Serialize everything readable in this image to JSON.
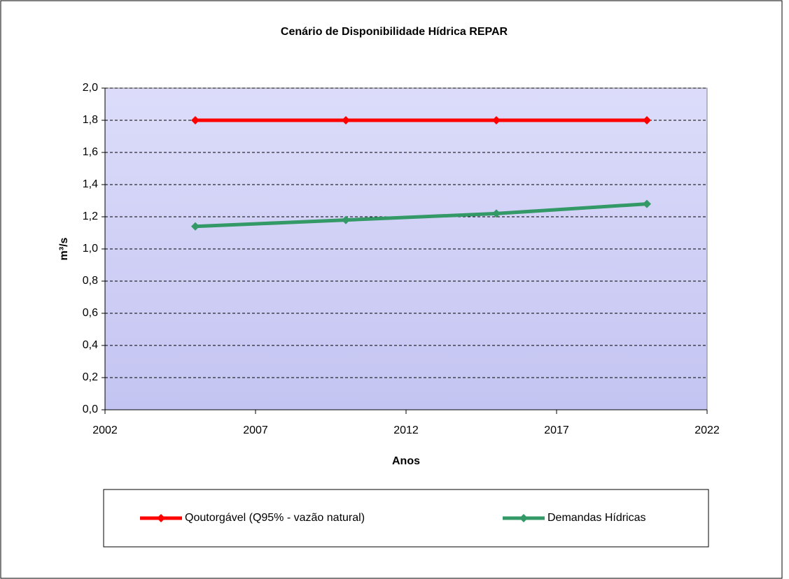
{
  "chart_data": {
    "type": "line",
    "title": "Cenário de Disponibilidade Hídrica REPAR",
    "x_label": "Anos",
    "y_label": "m³/s",
    "x": [
      2005,
      2010,
      2015,
      2020
    ],
    "series": [
      {
        "name": "Qoutorgável (Q95% - vazão natural)",
        "color": "#ff0000",
        "values": [
          1.8,
          1.8,
          1.8,
          1.8
        ]
      },
      {
        "name": "Demandas Hídricas",
        "color": "#339966",
        "values": [
          1.14,
          1.18,
          1.22,
          1.28
        ]
      }
    ],
    "xlim": [
      2002,
      2022
    ],
    "xticks": [
      2002,
      2007,
      2012,
      2017,
      2022
    ],
    "ylim": [
      0,
      2
    ],
    "yticks": [
      {
        "value": 0,
        "label": "0,0"
      },
      {
        "value": 0.2,
        "label": "0,2"
      },
      {
        "value": 0.4,
        "label": "0,4"
      },
      {
        "value": 0.6,
        "label": "0,6"
      },
      {
        "value": 0.8,
        "label": "0,8"
      },
      {
        "value": 1,
        "label": "1,0"
      },
      {
        "value": 1.2,
        "label": "1,2"
      },
      {
        "value": 1.4,
        "label": "1,4"
      },
      {
        "value": 1.6,
        "label": "1,6"
      },
      {
        "value": 1.8,
        "label": "1,8"
      },
      {
        "value": 2,
        "label": "2,0"
      }
    ],
    "grid": true,
    "legend": "bottom"
  }
}
